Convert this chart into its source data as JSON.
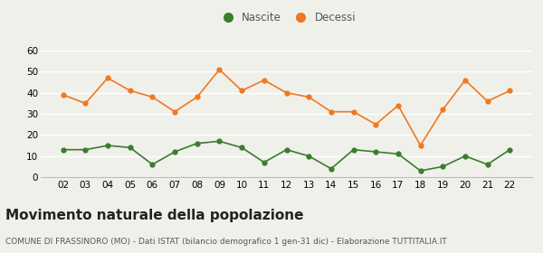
{
  "years": [
    "02",
    "03",
    "04",
    "05",
    "06",
    "07",
    "08",
    "09",
    "10",
    "11",
    "12",
    "13",
    "14",
    "15",
    "16",
    "17",
    "18",
    "19",
    "20",
    "21",
    "22"
  ],
  "nascite": [
    13,
    13,
    15,
    14,
    6,
    12,
    16,
    17,
    14,
    7,
    13,
    10,
    4,
    13,
    12,
    11,
    3,
    5,
    10,
    6,
    13
  ],
  "decessi": [
    39,
    35,
    47,
    41,
    38,
    31,
    38,
    51,
    41,
    46,
    40,
    38,
    31,
    31,
    25,
    34,
    15,
    32,
    46,
    36,
    41
  ],
  "nascite_color": "#3a7d2c",
  "decessi_color": "#f07820",
  "background_color": "#f0f0eb",
  "ylim": [
    0,
    60
  ],
  "yticks": [
    0,
    10,
    20,
    30,
    40,
    50,
    60
  ],
  "title": "Movimento naturale della popolazione",
  "subtitle": "COMUNE DI FRASSINORO (MO) - Dati ISTAT (bilancio demografico 1 gen-31 dic) - Elaborazione TUTTITALIA.IT",
  "legend_nascite": "Nascite",
  "legend_decessi": "Decessi",
  "title_fontsize": 11,
  "subtitle_fontsize": 6.5,
  "tick_fontsize": 7.5,
  "legend_fontsize": 8.5
}
